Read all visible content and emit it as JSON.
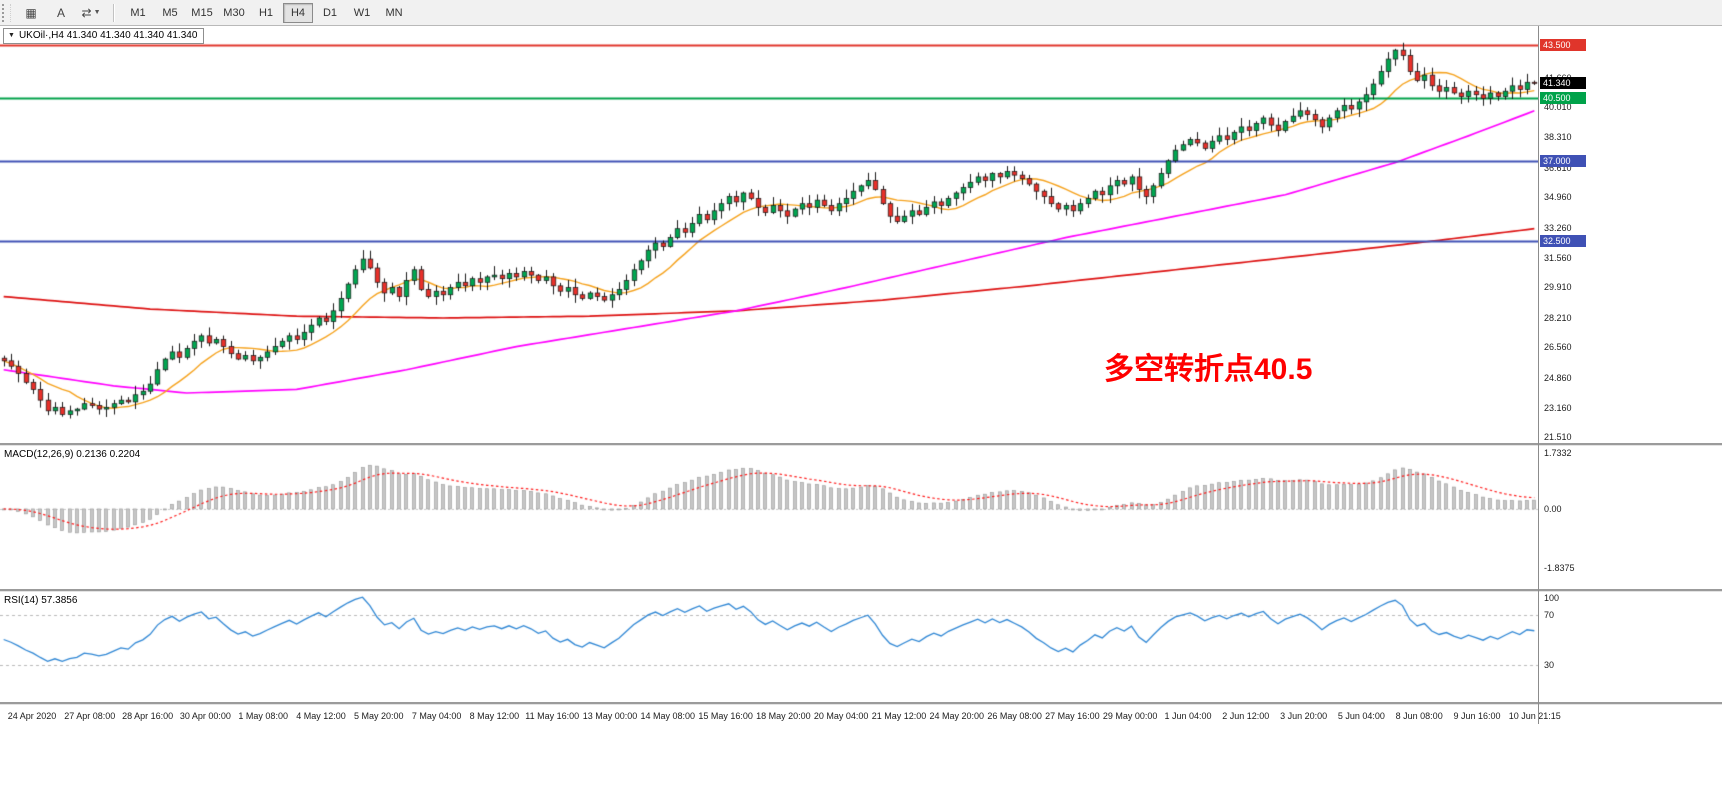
{
  "toolbar": {
    "tools": [
      {
        "name": "chart-layout",
        "glyph": "▦",
        "dropdown": false
      },
      {
        "name": "text-tool",
        "glyph": "A",
        "dropdown": false
      },
      {
        "name": "arrow-tools",
        "glyph": "⇄",
        "dropdown": true
      }
    ],
    "timeframes": [
      {
        "label": "M1",
        "active": false
      },
      {
        "label": "M5",
        "active": false
      },
      {
        "label": "M15",
        "active": false
      },
      {
        "label": "M30",
        "active": false
      },
      {
        "label": "H1",
        "active": false
      },
      {
        "label": "H4",
        "active": true
      },
      {
        "label": "D1",
        "active": false
      },
      {
        "label": "W1",
        "active": false
      },
      {
        "label": "MN",
        "active": false
      }
    ]
  },
  "main_panel": {
    "legend": "UKOil·,H4 41.340 41.340 41.340 41.340",
    "price_ticks": [
      "41.660",
      "40.010",
      "38.310",
      "36.610",
      "34.960",
      "33.260",
      "31.560",
      "29.910",
      "28.210",
      "26.560",
      "24.860",
      "23.160",
      "21.510"
    ],
    "badges": [
      {
        "value": "43.500",
        "price": 43.5,
        "bg": "#e0352b"
      },
      {
        "value": "41.340",
        "price": 41.34,
        "bg": "#000000"
      },
      {
        "value": "40.500",
        "price": 40.5,
        "bg": "#00a24a"
      },
      {
        "value": "37.000",
        "price": 37.0,
        "bg": "#3f51b5"
      },
      {
        "value": "32.500",
        "price": 32.5,
        "bg": "#3f51b5"
      }
    ]
  },
  "macd_panel": {
    "legend": "MACD(12,26,9) 0.2136 0.2204",
    "scale_labels": [
      {
        "text": "1.7332",
        "value": 1.7332
      },
      {
        "text": "0.00",
        "value": 0
      },
      {
        "text": "-1.8375",
        "value": -1.8375
      }
    ]
  },
  "rsi_panel": {
    "legend": "RSI(14) 57.3856",
    "scale_labels": [
      {
        "text": "100",
        "value": 100
      },
      {
        "text": "70",
        "value": 70
      },
      {
        "text": "30",
        "value": 30
      }
    ]
  },
  "chart_data": {
    "type": "candlestick",
    "symbol": "UKOil",
    "timeframe": "H4",
    "current_price": 41.34,
    "price_range": {
      "min": 21.2,
      "max": 44.55
    },
    "x_labels": [
      "24 Apr 2020",
      "27 Apr 08:00",
      "28 Apr 16:00",
      "30 Apr 00:00",
      "1 May 08:00",
      "4 May 12:00",
      "5 May 20:00",
      "7 May 04:00",
      "8 May 12:00",
      "11 May 16:00",
      "13 May 00:00",
      "14 May 08:00",
      "15 May 16:00",
      "18 May 20:00",
      "20 May 04:00",
      "21 May 12:00",
      "24 May 20:00",
      "26 May 08:00",
      "27 May 16:00",
      "29 May 00:00",
      "1 Jun 04:00",
      "2 Jun 12:00",
      "3 Jun 20:00",
      "5 Jun 04:00",
      "8 Jun 08:00",
      "9 Jun 16:00",
      "10 Jun 21:15"
    ],
    "closes": [
      25.8,
      25.5,
      25.1,
      24.6,
      24.2,
      23.6,
      23.0,
      23.2,
      22.8,
      23.0,
      23.1,
      23.4,
      23.3,
      23.1,
      23.2,
      23.4,
      23.6,
      23.5,
      23.9,
      24.1,
      24.5,
      25.3,
      25.9,
      26.3,
      26.0,
      26.5,
      26.9,
      27.2,
      26.8,
      27.0,
      26.6,
      26.2,
      25.9,
      26.1,
      25.8,
      26.0,
      26.3,
      26.6,
      26.9,
      27.2,
      27.0,
      27.4,
      27.8,
      28.2,
      28.0,
      28.6,
      29.3,
      30.1,
      30.9,
      31.5,
      31.0,
      30.2,
      29.6,
      29.9,
      29.4,
      30.3,
      30.9,
      29.8,
      29.4,
      29.7,
      29.5,
      29.9,
      30.2,
      30.0,
      30.4,
      30.2,
      30.5,
      30.6,
      30.4,
      30.7,
      30.5,
      30.8,
      30.6,
      30.3,
      30.5,
      30.0,
      29.7,
      29.9,
      29.5,
      29.3,
      29.6,
      29.4,
      29.2,
      29.5,
      29.8,
      30.3,
      30.9,
      31.4,
      32.0,
      32.4,
      32.2,
      32.7,
      33.2,
      33.0,
      33.5,
      34.0,
      33.7,
      34.2,
      34.6,
      35.0,
      34.7,
      35.2,
      34.9,
      34.4,
      34.1,
      34.5,
      34.2,
      33.9,
      34.3,
      34.6,
      34.4,
      34.8,
      34.5,
      34.2,
      34.6,
      34.9,
      35.3,
      35.6,
      35.9,
      35.4,
      34.6,
      33.9,
      33.6,
      33.9,
      34.2,
      34.0,
      34.4,
      34.7,
      34.5,
      34.9,
      35.2,
      35.5,
      35.8,
      36.1,
      35.9,
      36.3,
      36.1,
      36.4,
      36.2,
      36.0,
      35.7,
      35.3,
      35.0,
      34.6,
      34.3,
      34.5,
      34.2,
      34.6,
      34.9,
      35.3,
      35.1,
      35.6,
      35.9,
      35.7,
      36.1,
      35.4,
      35.0,
      35.6,
      36.3,
      37.0,
      37.6,
      37.9,
      38.2,
      38.0,
      37.7,
      38.1,
      38.4,
      38.2,
      38.6,
      38.9,
      38.7,
      39.1,
      39.4,
      39.0,
      38.7,
      39.2,
      39.5,
      39.8,
      39.6,
      39.3,
      38.9,
      39.4,
      39.8,
      40.1,
      39.9,
      40.3,
      40.7,
      41.3,
      42.0,
      42.7,
      43.2,
      42.9,
      42.0,
      41.5,
      41.8,
      41.2,
      40.9,
      41.1,
      40.8,
      40.6,
      40.9,
      40.7,
      40.5,
      40.8,
      40.6,
      40.9,
      41.2,
      41.0,
      41.4,
      41.34
    ],
    "hlines": [
      {
        "price": 43.5,
        "color": "#e0352b"
      },
      {
        "price": 40.5,
        "color": "#00a24a"
      },
      {
        "price": 37.0,
        "color": "#3f51b5"
      },
      {
        "price": 32.5,
        "color": "#3f51b5"
      }
    ],
    "moving_averages": {
      "fast": {
        "color": "#f5a21d",
        "period": 10
      },
      "mid": {
        "color": "#ff00ff",
        "keypoints": [
          [
            0,
            25.3
          ],
          [
            15,
            24.4
          ],
          [
            25,
            24.0
          ],
          [
            40,
            24.2
          ],
          [
            55,
            25.3
          ],
          [
            70,
            26.6
          ],
          [
            85,
            27.6
          ],
          [
            100,
            28.6
          ],
          [
            115,
            29.9
          ],
          [
            130,
            31.3
          ],
          [
            145,
            32.7
          ],
          [
            160,
            33.9
          ],
          [
            175,
            35.1
          ],
          [
            190,
            36.9
          ],
          [
            200,
            38.4
          ],
          [
            209,
            39.8
          ]
        ]
      },
      "slow": {
        "color": "#dd1212",
        "keypoints": [
          [
            0,
            29.4
          ],
          [
            20,
            28.7
          ],
          [
            40,
            28.3
          ],
          [
            60,
            28.2
          ],
          [
            80,
            28.3
          ],
          [
            100,
            28.6
          ],
          [
            120,
            29.2
          ],
          [
            140,
            30.0
          ],
          [
            160,
            30.9
          ],
          [
            180,
            31.8
          ],
          [
            195,
            32.5
          ],
          [
            209,
            33.2
          ]
        ]
      }
    },
    "annotation": {
      "text": "多空转折点40.5",
      "color": "#ff0000"
    },
    "macd": {
      "range": {
        "min": -2.48,
        "max": 1.95
      },
      "fast": 12,
      "slow": 26,
      "signal": 9,
      "hist_color": "#c6c6c6",
      "hist_outline": "#989898",
      "signal_color": "#ff1b1b"
    },
    "rsi": {
      "range": {
        "min": 0,
        "max": 88
      },
      "period": 14,
      "color": "#2e86d4",
      "levels": [
        70,
        30
      ],
      "level_color": "#b9b9b9"
    },
    "candle_colors": {
      "up": "#00a651",
      "down": "#e8302a",
      "outline": "#151515",
      "wick": "#1a1a1a"
    }
  }
}
